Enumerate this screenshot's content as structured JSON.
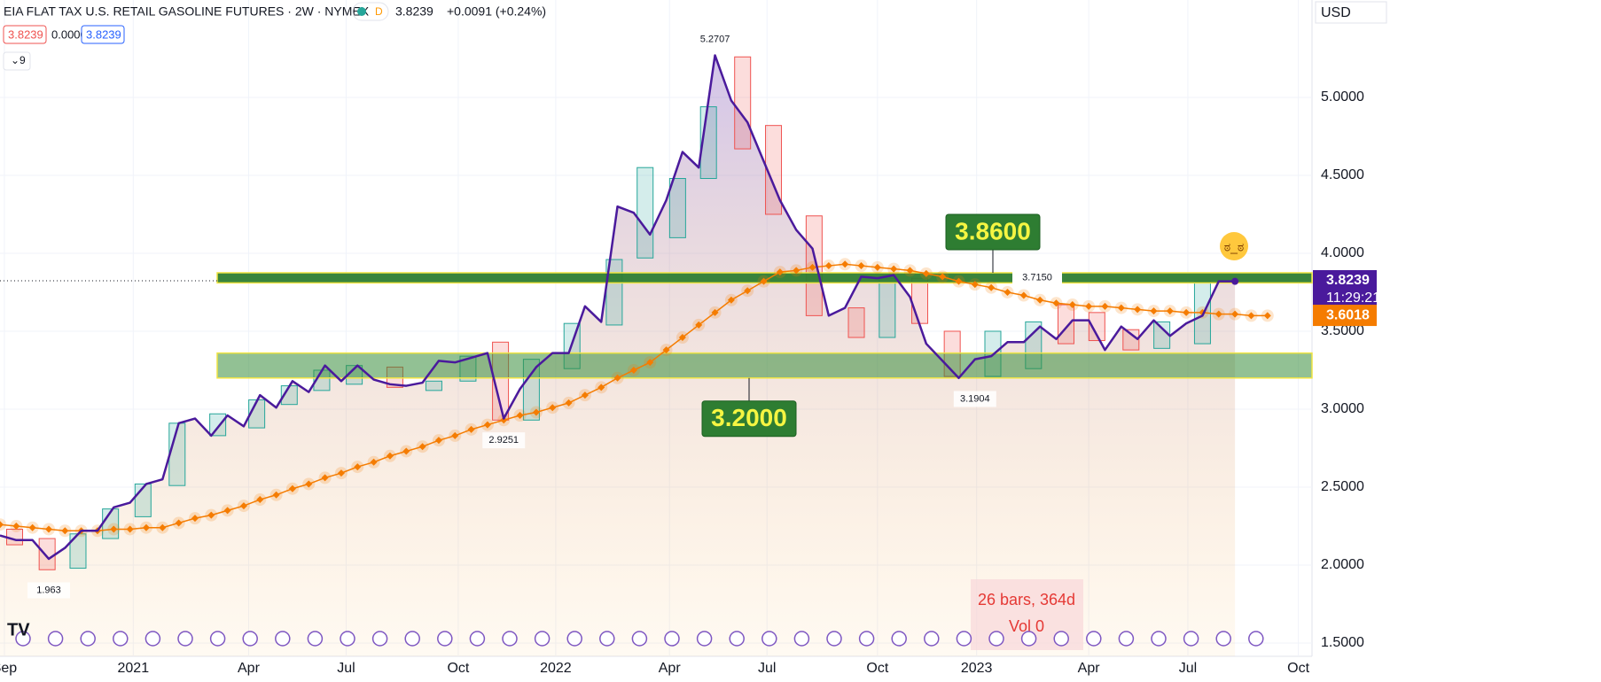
{
  "chart_data": {
    "type": "line",
    "title": "EIA FLAT TAX U.S. RETAIL GASOLINE FUTURES · 2W · NYMEX",
    "badge": "D",
    "last": "3.8239",
    "change": "+0.0091 (+0.24%)",
    "ohlc_row": [
      "3.8239",
      "0.0000",
      "3.8239"
    ],
    "indicator_count": "9",
    "currency": "USD",
    "xlim": [
      0,
      80.74
    ],
    "xticks": [
      {
        "value": 0.27,
        "label": "Sep"
      },
      {
        "value": 8.2,
        "label": "2021"
      },
      {
        "value": 15.3,
        "label": "Apr"
      },
      {
        "value": 21.3,
        "label": "Jul"
      },
      {
        "value": 28.2,
        "label": "Oct"
      },
      {
        "value": 34.2,
        "label": "2022"
      },
      {
        "value": 41.2,
        "label": "Apr"
      },
      {
        "value": 47.2,
        "label": "Jul"
      },
      {
        "value": 54.0,
        "label": "Oct"
      },
      {
        "value": 60.1,
        "label": "2023"
      },
      {
        "value": 67.0,
        "label": "Apr"
      },
      {
        "value": 73.1,
        "label": "Jul"
      },
      {
        "value": 79.9,
        "label": "Oct"
      }
    ],
    "ylim": [
      1.4145,
      5.625
    ],
    "yticks": [
      {
        "value": 1.5,
        "label": "1.5000"
      },
      {
        "value": 2,
        "label": "2.0000"
      },
      {
        "value": 2.5,
        "label": "2.5000"
      },
      {
        "value": 3,
        "label": "3.0000"
      },
      {
        "value": 3.5,
        "label": "3.5000"
      },
      {
        "value": 4,
        "label": "4.0000"
      },
      {
        "value": 4.5,
        "label": "4.5000"
      },
      {
        "value": 5,
        "label": "5.0000"
      }
    ],
    "series": [
      {
        "color": "#4a1a9c",
        "x": [
          0,
          1,
          2,
          3,
          4,
          5,
          6,
          7,
          8,
          9,
          10,
          11,
          12,
          13,
          14,
          15,
          16,
          17,
          18,
          19,
          20,
          21,
          22,
          23,
          24,
          25,
          26,
          27,
          28,
          29,
          30,
          31,
          32,
          33,
          34,
          35,
          36,
          37,
          38,
          39,
          40,
          41,
          42,
          43,
          44,
          45,
          46,
          47,
          48,
          49,
          50,
          51,
          52,
          53,
          54,
          55,
          56,
          57,
          58,
          59,
          60,
          61,
          62,
          63,
          64,
          65,
          66,
          67,
          68,
          69,
          70,
          71,
          72,
          73,
          74,
          75,
          76
        ],
        "values": [
          2.19,
          2.16,
          2.16,
          2.04,
          2.11,
          2.22,
          2.22,
          2.37,
          2.4,
          2.52,
          2.55,
          2.91,
          2.94,
          2.83,
          2.96,
          2.89,
          3.09,
          3.01,
          3.18,
          3.11,
          3.28,
          3.18,
          3.28,
          3.19,
          3.16,
          3.15,
          3.17,
          3.31,
          3.3,
          3.33,
          3.36,
          2.94,
          3.13,
          3.27,
          3.36,
          3.36,
          3.66,
          3.56,
          4.3,
          4.26,
          4.12,
          4.34,
          4.65,
          4.55,
          5.27,
          4.98,
          4.84,
          4.59,
          4.34,
          4.15,
          4.03,
          3.6,
          3.65,
          3.85,
          3.84,
          3.86,
          3.72,
          3.42,
          3.31,
          3.2,
          3.32,
          3.34,
          3.43,
          3.43,
          3.53,
          3.45,
          3.57,
          3.57,
          3.38,
          3.53,
          3.45,
          3.57,
          3.47,
          3.55,
          3.6,
          3.82,
          3.82
        ]
      },
      {
        "color": "#f57c00",
        "x": [
          0,
          1,
          2,
          3,
          4,
          5,
          6,
          7,
          8,
          9,
          10,
          11,
          12,
          13,
          14,
          15,
          16,
          17,
          18,
          19,
          20,
          21,
          22,
          23,
          24,
          25,
          26,
          27,
          28,
          29,
          30,
          31,
          32,
          33,
          34,
          35,
          36,
          37,
          38,
          39,
          40,
          41,
          42,
          43,
          44,
          45,
          46,
          47,
          48,
          49,
          50,
          51,
          52,
          53,
          54,
          55,
          56,
          57,
          58,
          59,
          60,
          61,
          62,
          63,
          64,
          65,
          66,
          67,
          68,
          69,
          70,
          71,
          72,
          73,
          74,
          75,
          76,
          77,
          78
        ],
        "values": [
          2.26,
          2.25,
          2.24,
          2.23,
          2.22,
          2.22,
          2.22,
          2.23,
          2.23,
          2.24,
          2.24,
          2.27,
          2.3,
          2.32,
          2.35,
          2.38,
          2.42,
          2.45,
          2.49,
          2.52,
          2.56,
          2.59,
          2.63,
          2.66,
          2.7,
          2.73,
          2.76,
          2.8,
          2.83,
          2.87,
          2.9,
          2.93,
          2.96,
          2.98,
          3.01,
          3.04,
          3.09,
          3.14,
          3.2,
          3.25,
          3.3,
          3.38,
          3.46,
          3.54,
          3.62,
          3.7,
          3.76,
          3.82,
          3.88,
          3.89,
          3.91,
          3.92,
          3.93,
          3.92,
          3.91,
          3.9,
          3.89,
          3.87,
          3.85,
          3.82,
          3.8,
          3.78,
          3.75,
          3.73,
          3.7,
          3.68,
          3.67,
          3.66,
          3.66,
          3.65,
          3.64,
          3.63,
          3.63,
          3.62,
          3.62,
          3.61,
          3.61,
          3.6,
          3.6
        ]
      }
    ],
    "boxes": {
      "up_color": "#26a69a",
      "down_color": "#ef5350",
      "x": [
        0.9,
        2.9,
        4.8,
        6.8,
        8.8,
        10.9,
        13.4,
        15.8,
        17.8,
        19.8,
        21.8,
        24.3,
        26.7,
        28.8,
        30.8,
        32.7,
        35.2,
        37.8,
        39.7,
        41.7,
        43.6,
        45.7,
        47.6,
        50.1,
        52.7,
        54.6,
        56.6,
        58.6,
        61.1,
        63.6,
        65.6,
        67.5,
        69.6,
        71.5,
        74.0
      ],
      "open": [
        2.23,
        2.17,
        1.98,
        2.17,
        2.31,
        2.51,
        2.83,
        2.88,
        3.03,
        3.12,
        3.16,
        3.27,
        3.12,
        3.18,
        3.43,
        2.93,
        3.26,
        3.54,
        3.97,
        4.1,
        4.48,
        5.26,
        4.82,
        4.24,
        3.65,
        3.46,
        3.84,
        3.5,
        3.21,
        3.26,
        3.67,
        3.62,
        3.51,
        3.39,
        3.42
      ],
      "close": [
        2.13,
        1.97,
        2.2,
        2.36,
        2.52,
        2.91,
        2.97,
        3.06,
        3.15,
        3.25,
        3.28,
        3.14,
        3.18,
        3.34,
        2.93,
        3.32,
        3.55,
        3.96,
        4.55,
        4.48,
        4.94,
        4.67,
        4.25,
        3.6,
        3.46,
        3.84,
        3.55,
        3.21,
        3.5,
        3.56,
        3.42,
        3.44,
        3.38,
        3.56,
        3.82
      ]
    },
    "zones": [
      {
        "top": 3.875,
        "bottom": 3.81,
        "label": "3.8600",
        "note": "3.7150"
      },
      {
        "top": 3.36,
        "bottom": 3.2,
        "label": "3.2000"
      }
    ],
    "annotations": [
      {
        "x": 44,
        "value": 5.2707,
        "position": "above"
      },
      {
        "x": 31,
        "value": 2.9251,
        "position": "below"
      },
      {
        "x": 3,
        "value": 1.963,
        "position": "below"
      },
      {
        "x": 60,
        "value": 3.1904,
        "position": "below"
      }
    ],
    "price_labels": [
      {
        "value": 3.8239,
        "sub": "11:29:21",
        "color": "#4a1a9c"
      },
      {
        "value": 3.6018,
        "color": "#f57c00"
      }
    ],
    "measure": [
      "26 bars, 364d",
      "Vol 0"
    ]
  }
}
